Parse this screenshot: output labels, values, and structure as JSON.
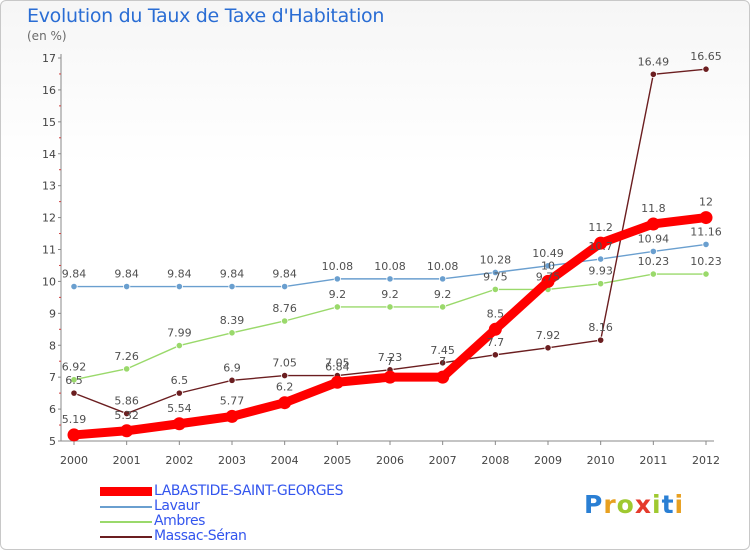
{
  "header": {
    "title": "Evolution du Taux de Taxe d'Habitation",
    "unit": "(en %)"
  },
  "brand": {
    "logo_text": "Proxiti",
    "letter_colors": [
      "#2a7fd4",
      "#e8a020",
      "#9fc930",
      "#e53b2c",
      "#9fc930",
      "#2a7fd4",
      "#e8a020"
    ]
  },
  "chart_data": {
    "type": "line",
    "title": "Evolution du Taux de Taxe d'Habitation",
    "ylabel": "(en %)",
    "xlabel": "",
    "x": [
      "2000",
      "2001",
      "2002",
      "2003",
      "2004",
      "2005",
      "2006",
      "2007",
      "2008",
      "2009",
      "2010",
      "2011",
      "2012"
    ],
    "ylim": [
      5,
      17
    ],
    "yticks": [
      5,
      6,
      7,
      8,
      9,
      10,
      11,
      12,
      13,
      14,
      15,
      16,
      17
    ],
    "grid": false,
    "legend_position": "bottom-left",
    "series": [
      {
        "name": "LABASTIDE-SAINT-GEORGES",
        "color": "#ff0000",
        "values": [
          5.19,
          5.32,
          5.54,
          5.77,
          6.2,
          6.84,
          7,
          7,
          8.5,
          10,
          11.2,
          11.8,
          12
        ],
        "labels": [
          "5.19",
          "5.32",
          "5.54",
          "5.77",
          "6.2",
          "6.84",
          "7",
          "7",
          "8.5",
          "10",
          "11.2",
          "11.8",
          "12"
        ]
      },
      {
        "name": "Lavaur",
        "color": "#6a9fcf",
        "values": [
          9.84,
          9.84,
          9.84,
          9.84,
          9.84,
          10.08,
          10.08,
          10.08,
          10.28,
          10.49,
          10.7,
          10.94,
          11.16
        ],
        "labels": [
          "9.84",
          "9.84",
          "9.84",
          "9.84",
          "9.84",
          "10.08",
          "10.08",
          "10.08",
          "10.28",
          "10.49",
          "10.7",
          "10.94",
          "11.16"
        ]
      },
      {
        "name": "Ambres",
        "color": "#9ad96b",
        "values": [
          6.92,
          7.26,
          7.99,
          8.39,
          8.76,
          9.2,
          9.2,
          9.2,
          9.75,
          9.75,
          9.93,
          10.23,
          10.23
        ],
        "labels": [
          "6.92",
          "7.26",
          "7.99",
          "8.39",
          "8.76",
          "9.2",
          "9.2",
          "9.2",
          "9.75",
          "9.75",
          "9.93",
          "10.23",
          "10.23"
        ]
      },
      {
        "name": "Massac-Séran",
        "color": "#6b1e20",
        "values": [
          6.5,
          5.86,
          6.5,
          6.9,
          7.05,
          7.05,
          7.23,
          7.45,
          7.7,
          7.92,
          8.16,
          16.49,
          16.65
        ],
        "labels": [
          "6.5",
          "5.86",
          "6.5",
          "6.9",
          "7.05",
          "7.05",
          "7.23",
          "7.45",
          "7.7",
          "7.92",
          "8.16",
          "16.49",
          "16.65"
        ]
      }
    ]
  }
}
